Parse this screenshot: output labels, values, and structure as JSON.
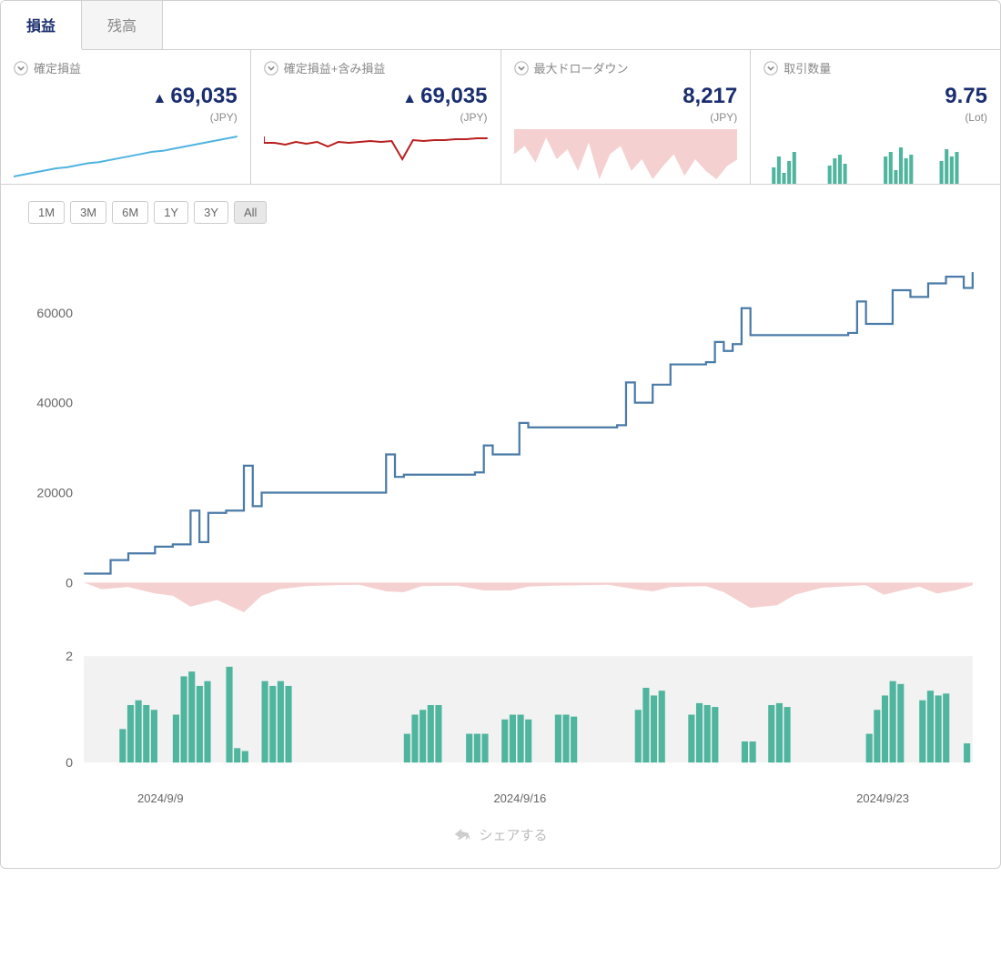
{
  "tabs": {
    "active": "損益",
    "inactive": "残高"
  },
  "cards": [
    {
      "key": "realized",
      "title": "確定損益",
      "value": "69,035",
      "tri": "▲",
      "unit": "(JPY)",
      "color": "#2c9dd6",
      "spark_type": "line",
      "spark_color": "#4fb3e0",
      "spark_data": [
        5,
        7,
        9,
        11,
        13,
        14,
        16,
        18,
        19,
        21,
        23,
        25,
        27,
        29,
        30,
        32,
        34,
        36,
        38,
        40,
        42,
        44
      ]
    },
    {
      "key": "unrealized",
      "title": "確定損益+含み損益",
      "value": "69,035",
      "tri": "▲",
      "unit": "(JPY)",
      "color": "#b81f1f",
      "spark_type": "spike",
      "spark_color": "#b81f1f",
      "spark_data": [
        38,
        38,
        36,
        39,
        37,
        39,
        34,
        39,
        38,
        39,
        40,
        39,
        40,
        20,
        41,
        40,
        41,
        41,
        42,
        42,
        43,
        43
      ]
    },
    {
      "key": "drawdown",
      "title": "最大ドローダウン",
      "value": "8,217",
      "tri": "",
      "unit": "(JPY)",
      "color": "#e8b0b0",
      "spark_type": "area_down",
      "spark_color": "#f5d0d0",
      "spark_data": [
        15,
        10,
        20,
        5,
        18,
        12,
        25,
        8,
        30,
        15,
        10,
        25,
        18,
        30,
        22,
        15,
        28,
        18,
        25,
        30,
        22,
        18
      ]
    },
    {
      "key": "lots",
      "title": "取引数量",
      "value": "9.75",
      "tri": "",
      "unit": "(Lot)",
      "color": "#4fb59e",
      "spark_type": "bars",
      "spark_color": "#4fb59e",
      "spark_groups": [
        [
          18,
          30,
          12,
          25,
          35
        ],
        [
          20,
          28,
          32,
          22
        ],
        [
          30,
          35,
          15,
          40,
          28,
          32
        ],
        [
          25,
          38,
          30,
          35
        ]
      ]
    }
  ],
  "ranges": [
    "1M",
    "3M",
    "6M",
    "1Y",
    "3Y",
    "All"
  ],
  "range_active": "All",
  "main_chart": {
    "type": "step_line",
    "line_color": "#4a7ba8",
    "dd_color": "#f5d0d0",
    "y_ticks": [
      0,
      20000,
      40000,
      60000
    ],
    "y_tick_labels": [
      "0",
      "20000",
      "40000",
      "60000"
    ],
    "ylim": [
      0,
      72000
    ],
    "x_labels": [
      "2024/9/9",
      "2024/9/16",
      "2024/9/23"
    ],
    "steps": [
      [
        0.0,
        2000
      ],
      [
        0.03,
        5000
      ],
      [
        0.05,
        6500
      ],
      [
        0.08,
        8000
      ],
      [
        0.1,
        8500
      ],
      [
        0.12,
        16000
      ],
      [
        0.13,
        9000
      ],
      [
        0.14,
        15500
      ],
      [
        0.16,
        16000
      ],
      [
        0.18,
        26000
      ],
      [
        0.19,
        17000
      ],
      [
        0.2,
        20000
      ],
      [
        0.33,
        20000
      ],
      [
        0.34,
        28500
      ],
      [
        0.35,
        23500
      ],
      [
        0.36,
        24000
      ],
      [
        0.44,
        24500
      ],
      [
        0.45,
        30500
      ],
      [
        0.46,
        28500
      ],
      [
        0.49,
        35500
      ],
      [
        0.5,
        34500
      ],
      [
        0.6,
        35000
      ],
      [
        0.61,
        44500
      ],
      [
        0.62,
        40000
      ],
      [
        0.64,
        44000
      ],
      [
        0.66,
        48500
      ],
      [
        0.7,
        49000
      ],
      [
        0.71,
        53500
      ],
      [
        0.72,
        51500
      ],
      [
        0.73,
        53000
      ],
      [
        0.74,
        61000
      ],
      [
        0.75,
        55000
      ],
      [
        0.86,
        55500
      ],
      [
        0.87,
        62500
      ],
      [
        0.88,
        57500
      ],
      [
        0.91,
        65000
      ],
      [
        0.93,
        63500
      ],
      [
        0.95,
        66500
      ],
      [
        0.97,
        68000
      ],
      [
        0.99,
        65500
      ],
      [
        1.0,
        69000
      ]
    ],
    "dd_area": [
      [
        0.0,
        0
      ],
      [
        0.02,
        -1500
      ],
      [
        0.05,
        -1000
      ],
      [
        0.08,
        -2500
      ],
      [
        0.1,
        -3000
      ],
      [
        0.12,
        -5500
      ],
      [
        0.15,
        -4000
      ],
      [
        0.18,
        -6800
      ],
      [
        0.2,
        -3000
      ],
      [
        0.22,
        -1500
      ],
      [
        0.25,
        -800
      ],
      [
        0.28,
        -600
      ],
      [
        0.31,
        -500
      ],
      [
        0.34,
        -2000
      ],
      [
        0.36,
        -2200
      ],
      [
        0.38,
        -800
      ],
      [
        0.42,
        -700
      ],
      [
        0.45,
        -1800
      ],
      [
        0.48,
        -1800
      ],
      [
        0.5,
        -900
      ],
      [
        0.53,
        -700
      ],
      [
        0.56,
        -600
      ],
      [
        0.59,
        -500
      ],
      [
        0.62,
        -1500
      ],
      [
        0.64,
        -2000
      ],
      [
        0.66,
        -1000
      ],
      [
        0.7,
        -800
      ],
      [
        0.72,
        -2200
      ],
      [
        0.75,
        -5800
      ],
      [
        0.78,
        -5200
      ],
      [
        0.8,
        -2800
      ],
      [
        0.83,
        -1200
      ],
      [
        0.86,
        -800
      ],
      [
        0.88,
        -600
      ],
      [
        0.9,
        -2800
      ],
      [
        0.92,
        -1800
      ],
      [
        0.94,
        -900
      ],
      [
        0.96,
        -2500
      ],
      [
        0.98,
        -1800
      ],
      [
        1.0,
        -600
      ]
    ]
  },
  "volume_chart": {
    "type": "bars",
    "bar_color": "#4fb59e",
    "y_ticks": [
      0,
      2
    ],
    "bg_color": "#f2f2f2",
    "groups": [
      {
        "x": 0.04,
        "bars": [
          0.35,
          0.6,
          0.65,
          0.6,
          0.55
        ]
      },
      {
        "x": 0.1,
        "bars": [
          0.5,
          0.9,
          0.95,
          0.8,
          0.85
        ]
      },
      {
        "x": 0.16,
        "bars": [
          1.0,
          0.15,
          0.12
        ]
      },
      {
        "x": 0.2,
        "bars": [
          0.85,
          0.8,
          0.85,
          0.8
        ]
      },
      {
        "x": 0.36,
        "bars": [
          0.3,
          0.5,
          0.55,
          0.6,
          0.6
        ]
      },
      {
        "x": 0.43,
        "bars": [
          0.3,
          0.3,
          0.3
        ]
      },
      {
        "x": 0.47,
        "bars": [
          0.45,
          0.5,
          0.5,
          0.45
        ]
      },
      {
        "x": 0.53,
        "bars": [
          0.5,
          0.5,
          0.48
        ]
      },
      {
        "x": 0.62,
        "bars": [
          0.55,
          0.78,
          0.7,
          0.75
        ]
      },
      {
        "x": 0.68,
        "bars": [
          0.5,
          0.62,
          0.6,
          0.58
        ]
      },
      {
        "x": 0.74,
        "bars": [
          0.22,
          0.22
        ]
      },
      {
        "x": 0.77,
        "bars": [
          0.6,
          0.62,
          0.58
        ]
      },
      {
        "x": 0.88,
        "bars": [
          0.3,
          0.55,
          0.7,
          0.85,
          0.82
        ]
      },
      {
        "x": 0.94,
        "bars": [
          0.65,
          0.75,
          0.7,
          0.72
        ]
      },
      {
        "x": 0.99,
        "bars": [
          0.2
        ]
      }
    ]
  },
  "share": {
    "label": "シェアする"
  },
  "colors": {
    "accent": "#1a2e6f",
    "border": "#d0d0d0",
    "muted": "#888"
  }
}
